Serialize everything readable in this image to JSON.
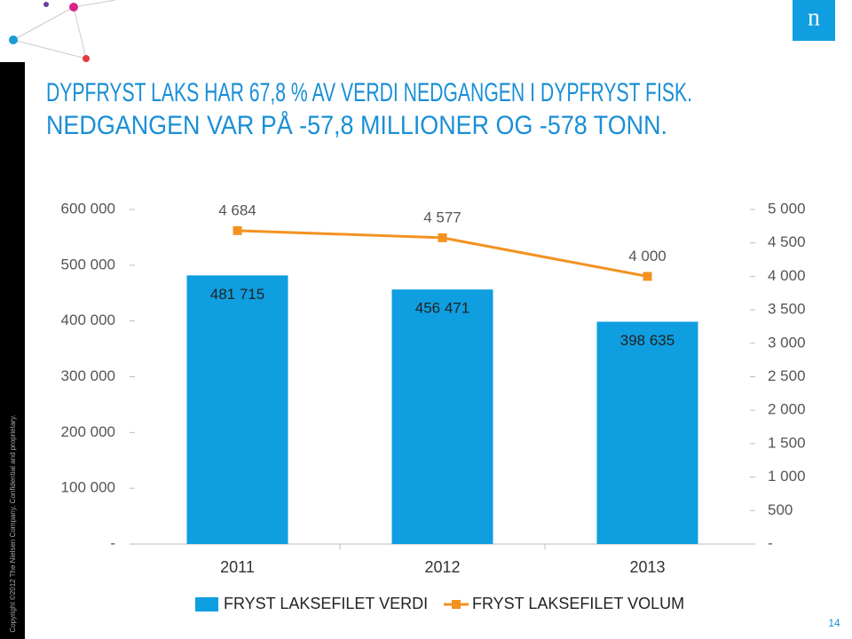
{
  "copyright": "Copyright ©2012 The Nielsen Company. Confidential and proprietary.",
  "logo": "n",
  "page_number": "14",
  "title_lines": [
    "DYPFRYST LAKS HAR 67,8 % AV VERDI NEDGANGEN I DYPFRYST FISK.",
    "NEDGANGEN VAR PÅ -57,8 MILLIONER OG -578 TONN."
  ],
  "chart_data": {
    "type": "bar",
    "categories": [
      "2011",
      "2012",
      "2013"
    ],
    "series": [
      {
        "name": "FRYST LAKSEFILET VERDI",
        "type": "bar",
        "color": "#0f9ee0",
        "values": [
          481715,
          456471,
          398635
        ],
        "value_labels": [
          "481 715",
          "456 471",
          "398 635"
        ]
      },
      {
        "name": "FRYST LAKSEFILET VOLUM",
        "type": "line",
        "axis": "y2",
        "color": "#f39221",
        "values": [
          4684,
          4577,
          4000
        ],
        "value_labels": [
          "4 684",
          "4 577",
          "4 000"
        ]
      }
    ],
    "ylim": [
      0,
      600000
    ],
    "yticks": [
      {
        "value": 0,
        "label": "-"
      },
      {
        "value": 100000,
        "label": "100 000"
      },
      {
        "value": 200000,
        "label": "200 000"
      },
      {
        "value": 300000,
        "label": "300 000"
      },
      {
        "value": 400000,
        "label": "400 000"
      },
      {
        "value": 500000,
        "label": "500 000"
      },
      {
        "value": 600000,
        "label": "600 000"
      }
    ],
    "y2lim": [
      0,
      5000
    ],
    "y2ticks": [
      {
        "value": 0,
        "label": "-"
      },
      500,
      {
        "value": 1000,
        "label": "1 000"
      },
      {
        "value": 1500,
        "label": "1 500"
      },
      {
        "value": 2000,
        "label": "2 000"
      },
      {
        "value": 2500,
        "label": "2 500"
      },
      {
        "value": 3000,
        "label": "3 000"
      },
      {
        "value": 3500,
        "label": "3 500"
      },
      {
        "value": 4000,
        "label": "4 000"
      },
      {
        "value": 4500,
        "label": "4 500"
      },
      {
        "value": 5000,
        "label": "5 000"
      }
    ],
    "grid": false,
    "legend": "bottom"
  }
}
